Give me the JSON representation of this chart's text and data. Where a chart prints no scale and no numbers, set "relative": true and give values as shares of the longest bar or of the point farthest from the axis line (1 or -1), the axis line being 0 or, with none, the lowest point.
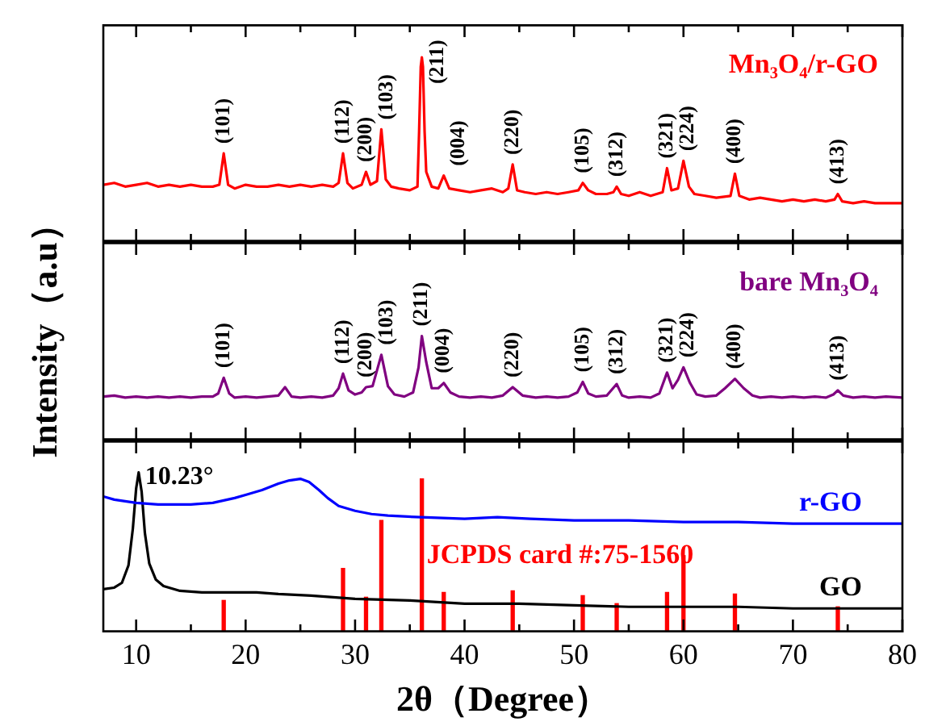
{
  "chart_data": [
    {
      "type": "line",
      "relative": true,
      "legend": false,
      "grid": false,
      "tick_labels": false,
      "xlim": [
        7,
        80
      ],
      "xticks": [
        10,
        {
          "value": 15,
          "label": null
        },
        20,
        {
          "value": 25,
          "label": null
        },
        30,
        {
          "value": 35,
          "label": null
        },
        40,
        {
          "value": 45,
          "label": null
        },
        50,
        {
          "value": 55,
          "label": null
        },
        60,
        {
          "value": 65,
          "label": null
        },
        70,
        {
          "value": 75,
          "label": null
        },
        80
      ],
      "series": [
        {
          "name": "Mn₃O₄/r-GO",
          "color": "#ff0000",
          "x": [
            7,
            8,
            9,
            10,
            11,
            12,
            13,
            14,
            15,
            16,
            17,
            17.6,
            18.0,
            18.4,
            19,
            20,
            21,
            22,
            23,
            24,
            25,
            26,
            27,
            28,
            28.5,
            28.9,
            29.3,
            29.8,
            30.6,
            31.0,
            31.4,
            32.0,
            32.4,
            32.8,
            33.3,
            34,
            35,
            35.7,
            35.85,
            36.0,
            36.1,
            36.2,
            36.35,
            36.5,
            37,
            37.6,
            38.1,
            38.6,
            39.5,
            40.5,
            41.5,
            42.5,
            43.5,
            44.0,
            44.4,
            44.8,
            45.5,
            46.5,
            47.5,
            48.5,
            49.5,
            50.4,
            50.8,
            51.3,
            52,
            53,
            53.6,
            53.9,
            54.3,
            55,
            56,
            57,
            58.1,
            58.5,
            58.9,
            59.5,
            60.0,
            60.5,
            61,
            62,
            63,
            64.3,
            64.7,
            65.1,
            66,
            67,
            68,
            69,
            70,
            71,
            72,
            73,
            73.8,
            74.1,
            74.5,
            75.5,
            76.5,
            77.5,
            78.5,
            80
          ],
          "values": [
            0.31,
            0.32,
            0.3,
            0.31,
            0.32,
            0.3,
            0.31,
            0.3,
            0.31,
            0.3,
            0.3,
            0.31,
            0.48,
            0.31,
            0.29,
            0.31,
            0.3,
            0.3,
            0.31,
            0.3,
            0.31,
            0.3,
            0.31,
            0.3,
            0.32,
            0.48,
            0.32,
            0.29,
            0.31,
            0.38,
            0.31,
            0.33,
            0.61,
            0.34,
            0.3,
            0.29,
            0.28,
            0.3,
            0.6,
            0.95,
            1.0,
            0.95,
            0.6,
            0.38,
            0.3,
            0.29,
            0.36,
            0.29,
            0.28,
            0.27,
            0.28,
            0.29,
            0.27,
            0.29,
            0.42,
            0.28,
            0.27,
            0.26,
            0.27,
            0.26,
            0.27,
            0.28,
            0.32,
            0.28,
            0.26,
            0.26,
            0.27,
            0.3,
            0.26,
            0.25,
            0.27,
            0.25,
            0.27,
            0.4,
            0.28,
            0.29,
            0.44,
            0.3,
            0.26,
            0.25,
            0.24,
            0.25,
            0.37,
            0.25,
            0.23,
            0.24,
            0.23,
            0.22,
            0.23,
            0.22,
            0.23,
            0.22,
            0.23,
            0.26,
            0.22,
            0.21,
            0.22,
            0.21,
            0.21,
            0.21
          ]
        }
      ],
      "annotations": [
        {
          "text": "(101)",
          "x": 18.0,
          "y": 0.48
        },
        {
          "text": "(112)",
          "x": 28.9,
          "y": 0.48
        },
        {
          "text": "(200)",
          "x": 31.0,
          "y": 0.38
        },
        {
          "text": "(103)",
          "x": 32.4,
          "y": 0.61
        },
        {
          "text": "(211)",
          "x": 36.1,
          "y": 1.0
        },
        {
          "text": "(004)",
          "x": 38.1,
          "y": 0.36
        },
        {
          "text": "(220)",
          "x": 44.4,
          "y": 0.42
        },
        {
          "text": "(105)",
          "x": 50.8,
          "y": 0.32
        },
        {
          "text": "(312)",
          "x": 53.9,
          "y": 0.3
        },
        {
          "text": "(321)",
          "x": 58.5,
          "y": 0.4
        },
        {
          "text": "(224)",
          "x": 60.0,
          "y": 0.44
        },
        {
          "text": "(400)",
          "x": 64.7,
          "y": 0.37
        },
        {
          "text": "(413)",
          "x": 74.1,
          "y": 0.26
        }
      ]
    },
    {
      "type": "line",
      "relative": true,
      "legend": false,
      "grid": false,
      "tick_labels": false,
      "xlim": [
        7,
        80
      ],
      "ylabel": "Intensity（a.u）",
      "xticks": [
        10,
        {
          "value": 15,
          "label": null
        },
        20,
        {
          "value": 25,
          "label": null
        },
        30,
        {
          "value": 35,
          "label": null
        },
        40,
        {
          "value": 45,
          "label": null
        },
        50,
        {
          "value": 55,
          "label": null
        },
        60,
        {
          "value": 65,
          "label": null
        },
        70,
        {
          "value": 75,
          "label": null
        },
        80
      ],
      "series": [
        {
          "name": "bare Mn₃O₄",
          "color": "#800080",
          "x": [
            7,
            8,
            9,
            10,
            11,
            12,
            13,
            14,
            15,
            16,
            17,
            17.5,
            18.0,
            18.5,
            19,
            20,
            21,
            22,
            23,
            23.6,
            24.2,
            25,
            26,
            27,
            28,
            28.5,
            28.9,
            29.4,
            30,
            30.6,
            31.0,
            31.6,
            32.4,
            33,
            33.6,
            34.5,
            35.3,
            35.8,
            36.1,
            36.5,
            37,
            37.6,
            38.1,
            38.7,
            39.5,
            40.5,
            41.5,
            42.5,
            43.5,
            44.4,
            45.3,
            46.5,
            47.5,
            48.5,
            49.5,
            50.3,
            50.8,
            51.3,
            52,
            53,
            53.9,
            54.4,
            55,
            56,
            57,
            57.8,
            58.5,
            59.0,
            59.5,
            60.0,
            60.6,
            61.2,
            62,
            63,
            63.8,
            64.7,
            65.5,
            66.3,
            67,
            68,
            69,
            70,
            71,
            72,
            73,
            73.7,
            74.1,
            74.6,
            75.5,
            76.5,
            77.5,
            78.5,
            80
          ],
          "values": [
            0.42,
            0.43,
            0.41,
            0.42,
            0.41,
            0.42,
            0.41,
            0.42,
            0.41,
            0.42,
            0.42,
            0.45,
            0.6,
            0.45,
            0.41,
            0.42,
            0.41,
            0.42,
            0.43,
            0.51,
            0.42,
            0.41,
            0.42,
            0.41,
            0.43,
            0.5,
            0.64,
            0.48,
            0.44,
            0.46,
            0.51,
            0.52,
            0.82,
            0.52,
            0.44,
            0.42,
            0.46,
            0.7,
            1.0,
            0.75,
            0.5,
            0.5,
            0.55,
            0.46,
            0.42,
            0.41,
            0.42,
            0.41,
            0.43,
            0.51,
            0.43,
            0.41,
            0.42,
            0.41,
            0.42,
            0.46,
            0.56,
            0.45,
            0.42,
            0.43,
            0.54,
            0.43,
            0.41,
            0.42,
            0.41,
            0.45,
            0.65,
            0.5,
            0.58,
            0.7,
            0.55,
            0.44,
            0.42,
            0.43,
            0.5,
            0.59,
            0.5,
            0.43,
            0.41,
            0.42,
            0.41,
            0.42,
            0.41,
            0.42,
            0.41,
            0.44,
            0.48,
            0.43,
            0.41,
            0.42,
            0.41,
            0.42,
            0.41
          ]
        }
      ],
      "annotations": [
        {
          "text": "(101)",
          "x": 18.0,
          "y": 0.6
        },
        {
          "text": "(112)",
          "x": 28.9,
          "y": 0.64
        },
        {
          "text": "(200)",
          "x": 31.0,
          "y": 0.51
        },
        {
          "text": "(103)",
          "x": 32.4,
          "y": 0.82
        },
        {
          "text": "(211)",
          "x": 36.1,
          "y": 1.0
        },
        {
          "text": "(004)",
          "x": 38.1,
          "y": 0.55
        },
        {
          "text": "(220)",
          "x": 44.4,
          "y": 0.51
        },
        {
          "text": "(105)",
          "x": 50.8,
          "y": 0.56
        },
        {
          "text": "(312)",
          "x": 53.9,
          "y": 0.54
        },
        {
          "text": "(321)",
          "x": 58.5,
          "y": 0.65
        },
        {
          "text": "(224)",
          "x": 60.0,
          "y": 0.7
        },
        {
          "text": "(400)",
          "x": 64.7,
          "y": 0.59
        },
        {
          "text": "(413)",
          "x": 74.1,
          "y": 0.48
        }
      ]
    },
    {
      "type": "line",
      "relative": true,
      "grid": false,
      "tick_labels": "x",
      "xlim": [
        7,
        80
      ],
      "xlabel": "2θ（Degree）",
      "xticks": [
        10,
        {
          "value": 15,
          "label": null
        },
        20,
        {
          "value": 25,
          "label": null
        },
        30,
        {
          "value": 35,
          "label": null
        },
        40,
        {
          "value": 45,
          "label": null
        },
        50,
        {
          "value": 55,
          "label": null
        },
        60,
        {
          "value": 65,
          "label": null
        },
        70,
        {
          "value": 75,
          "label": null
        },
        80
      ],
      "series": [
        {
          "name": "r-GO",
          "color": "#0000ff",
          "x": [
            7,
            8,
            10,
            12,
            15,
            17,
            19,
            20,
            21.5,
            23,
            24,
            25,
            25.8,
            26.7,
            27.5,
            28.5,
            30,
            31.5,
            33,
            36,
            40,
            43,
            46,
            50,
            55,
            60,
            65,
            70,
            75,
            80
          ],
          "values": [
            0.85,
            0.83,
            0.81,
            0.8,
            0.8,
            0.81,
            0.84,
            0.86,
            0.89,
            0.93,
            0.95,
            0.96,
            0.94,
            0.89,
            0.84,
            0.79,
            0.76,
            0.74,
            0.73,
            0.72,
            0.71,
            0.72,
            0.71,
            0.7,
            0.7,
            0.69,
            0.69,
            0.68,
            0.68,
            0.68
          ]
        },
        {
          "name": "GO",
          "color": "#000000",
          "x": [
            7,
            8,
            8.7,
            9.3,
            9.7,
            10.0,
            10.23,
            10.5,
            10.8,
            11.2,
            11.8,
            12.5,
            14,
            16,
            18,
            20,
            21,
            23,
            26,
            30,
            35,
            40,
            45,
            50,
            55,
            60,
            65,
            70,
            75,
            80
          ],
          "values": [
            0.27,
            0.28,
            0.31,
            0.42,
            0.65,
            0.9,
            1.0,
            0.88,
            0.62,
            0.43,
            0.33,
            0.29,
            0.26,
            0.25,
            0.25,
            0.25,
            0.25,
            0.24,
            0.23,
            0.21,
            0.2,
            0.18,
            0.18,
            0.17,
            0.16,
            0.16,
            0.16,
            0.15,
            0.15,
            0.15
          ]
        },
        {
          "name": "JCPDS card #:75-1560",
          "type": "bar",
          "color": "#ff0000",
          "x": [
            18.0,
            28.9,
            31.0,
            32.4,
            36.1,
            38.1,
            44.4,
            50.8,
            53.9,
            58.5,
            60.0,
            64.7,
            74.1
          ],
          "values": [
            0.2,
            0.4,
            0.22,
            0.7,
            0.96,
            0.25,
            0.26,
            0.23,
            0.18,
            0.25,
            0.48,
            0.24,
            0.16
          ]
        }
      ],
      "annotations": [
        {
          "text": "10.23°",
          "x": 10.23,
          "y": 1.0
        }
      ]
    }
  ]
}
